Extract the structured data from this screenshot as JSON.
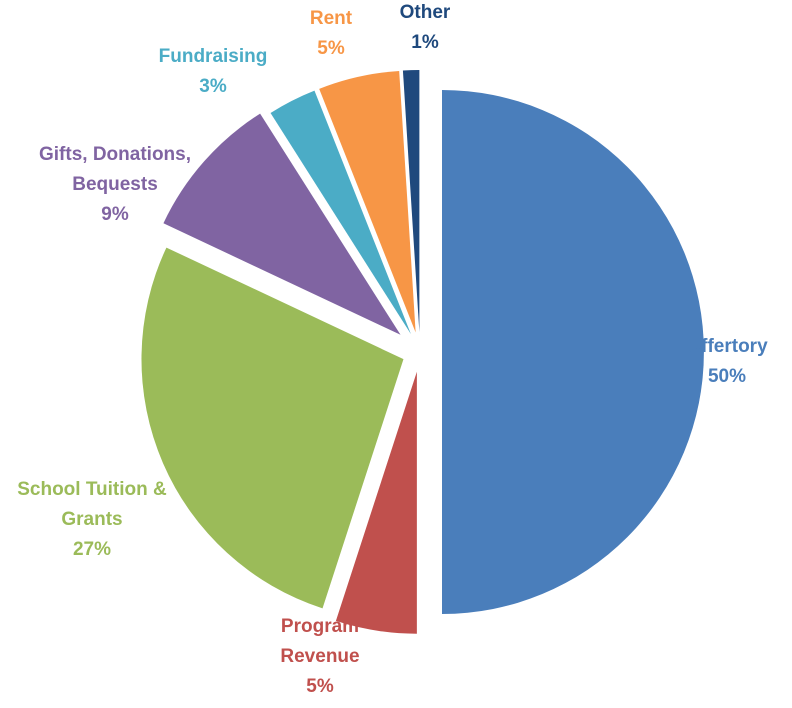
{
  "chart_data": {
    "type": "pie",
    "exploded": true,
    "start": "12 o'clock, clockwise",
    "slices": [
      {
        "label_lines": [
          "Offertory"
        ],
        "value_text": "50%",
        "value": 50,
        "color": "#4A7EBB",
        "label_color": "#4A7EBB"
      },
      {
        "label_lines": [
          "Program",
          "Revenue"
        ],
        "value_text": "5%",
        "value": 5,
        "color": "#C0504D",
        "label_color": "#C0504D"
      },
      {
        "label_lines": [
          "School Tuition &",
          "Grants"
        ],
        "value_text": "27%",
        "value": 27,
        "color": "#9BBB59",
        "label_color": "#9BBB59"
      },
      {
        "label_lines": [
          "Gifts, Donations,",
          "Bequests"
        ],
        "value_text": "9%",
        "value": 9,
        "color": "#8064A2",
        "label_color": "#8064A2"
      },
      {
        "label_lines": [
          "Fundraising"
        ],
        "value_text": "3%",
        "value": 3,
        "color": "#4BACC6",
        "label_color": "#4BACC6"
      },
      {
        "label_lines": [
          "Rent"
        ],
        "value_text": "5%",
        "value": 5,
        "color": "#F79646",
        "label_color": "#F79646"
      },
      {
        "label_lines": [
          "Other"
        ],
        "value_text": "1%",
        "value": 1,
        "color": "#1F497D",
        "label_color": "#1F497D"
      }
    ]
  }
}
